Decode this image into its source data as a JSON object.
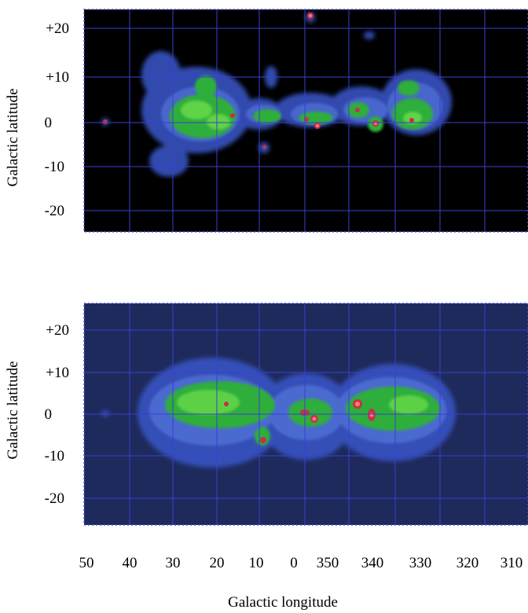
{
  "chart_data": [
    {
      "type": "heatmap",
      "title": "",
      "ylabel": "Galactic latitude",
      "xlabel": "",
      "y_ticks": [
        "+20",
        "+10",
        "0",
        "-10",
        "-20"
      ],
      "y_tick_values": [
        20,
        10,
        0,
        -10,
        -20
      ],
      "background_color": "#000000",
      "grid": true,
      "grid_color": "#3a3fd0",
      "palette": [
        "#2f3f9a",
        "#4a67c8",
        "#2fae3a",
        "#66d84a",
        "#c8304a",
        "#ff7a6a"
      ],
      "features": [
        {
          "l": 16,
          "b": 2,
          "intensity": "medium"
        },
        {
          "l": 26,
          "b": 5,
          "intensity": "medium"
        },
        {
          "l": 6,
          "b": 2,
          "intensity": "medium"
        },
        {
          "l": 354,
          "b": 1,
          "intensity": "high"
        },
        {
          "l": 347,
          "b": 4,
          "intensity": "medium"
        },
        {
          "l": 337,
          "b": 1,
          "intensity": "high"
        },
        {
          "l": 330,
          "b": 4,
          "intensity": "medium"
        },
        {
          "l": 46,
          "b": 1,
          "intensity": "high"
        },
        {
          "l": 358,
          "b": 23,
          "intensity": "high"
        },
        {
          "l": 10,
          "b": -4,
          "intensity": "medium"
        }
      ]
    },
    {
      "type": "heatmap",
      "title": "",
      "ylabel": "Galactic latitude",
      "xlabel": "Galactic longitude",
      "y_ticks": [
        "+20",
        "+10",
        "0",
        "-10",
        "-20"
      ],
      "y_tick_values": [
        20,
        10,
        0,
        -10,
        -20
      ],
      "x_ticks": [
        "50",
        "40",
        "30",
        "20",
        "10",
        "0",
        "350",
        "340",
        "330",
        "320",
        "310"
      ],
      "x_tick_values": [
        50,
        40,
        30,
        20,
        10,
        0,
        350,
        340,
        330,
        320,
        310
      ],
      "background_color": "#1e2a5c",
      "grid": true,
      "grid_color": "#3a3fd0",
      "palette": [
        "#2f3f9a",
        "#4a67c8",
        "#2fae3a",
        "#66d84a",
        "#c8304a",
        "#ff7a6a"
      ],
      "features": [
        {
          "l": 18,
          "b": 1,
          "intensity": "high"
        },
        {
          "l": 10,
          "b": -6,
          "intensity": "high"
        },
        {
          "l": 356,
          "b": -1,
          "intensity": "high"
        },
        {
          "l": 343,
          "b": 1,
          "intensity": "high"
        },
        {
          "l": 340,
          "b": -1,
          "intensity": "high"
        },
        {
          "l": 46,
          "b": 0,
          "intensity": "medium"
        }
      ]
    }
  ]
}
